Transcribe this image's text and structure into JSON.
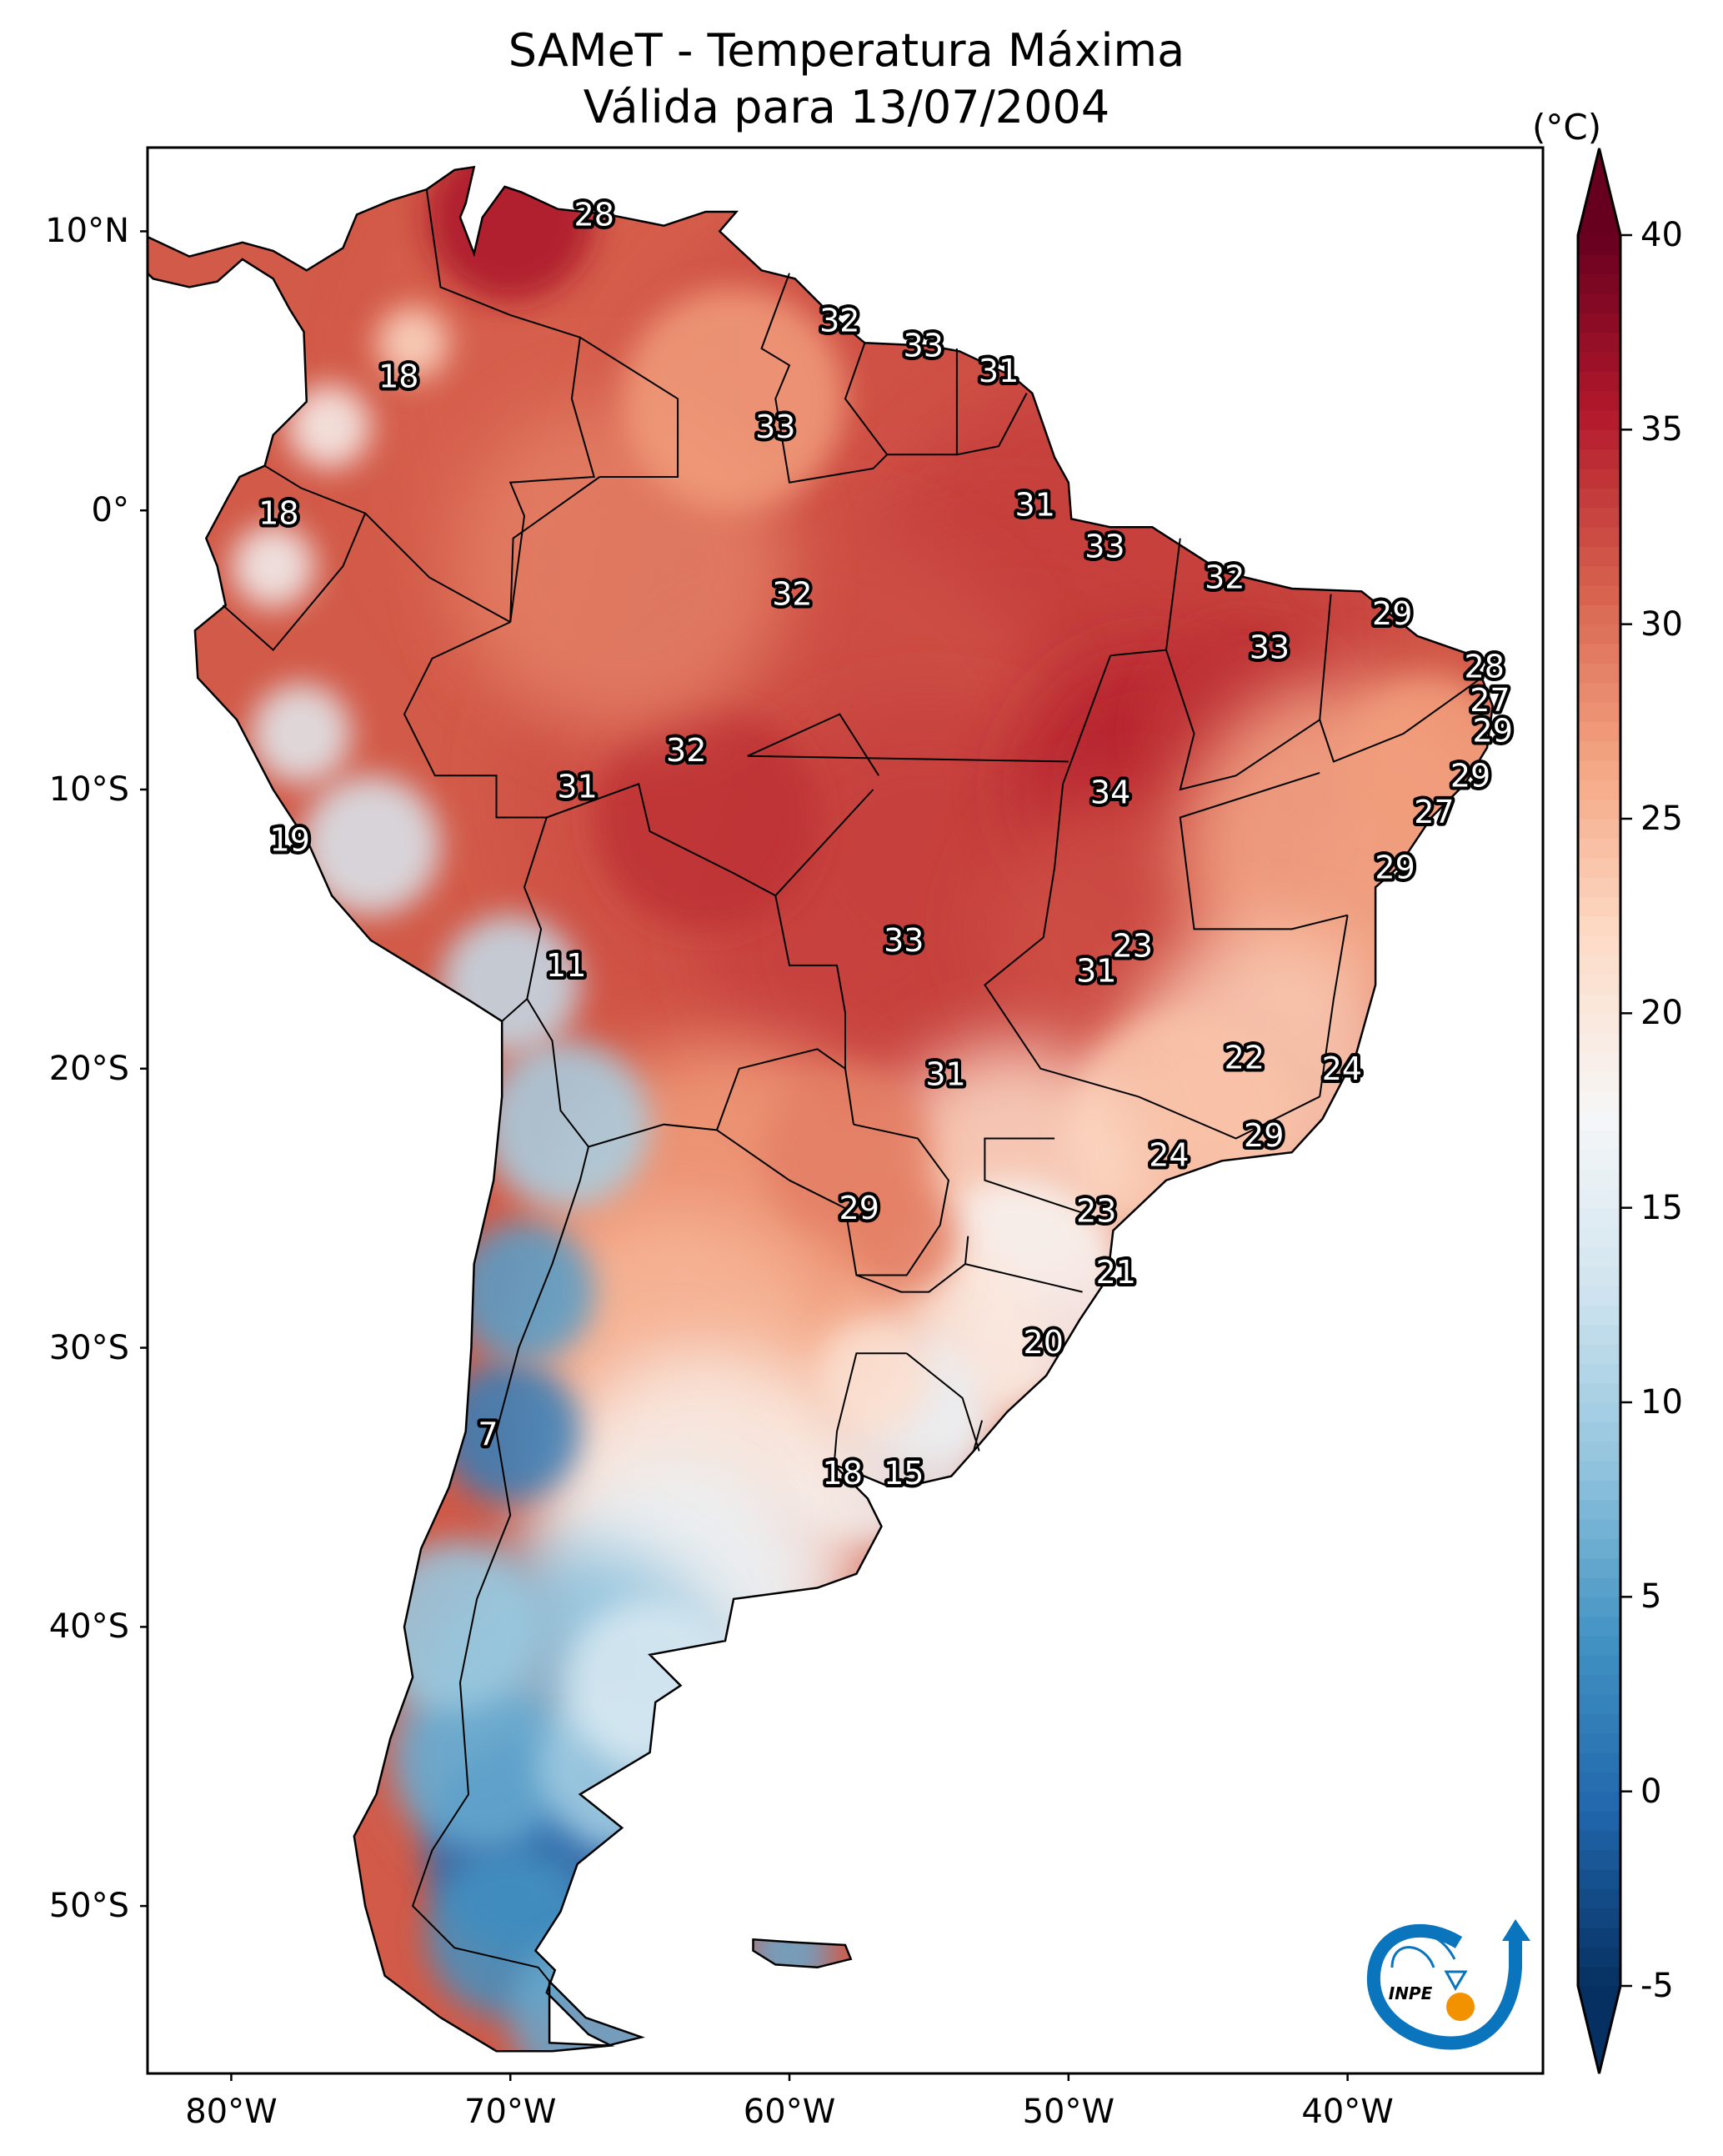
{
  "title": {
    "line1": "SAMeT - Temperatura Máxima",
    "line2": "Válida para 13/07/2004"
  },
  "chart_data": {
    "type": "heatmap",
    "title": "SAMeT - Temperatura Máxima\nVálida para 13/07/2004",
    "variable": "Maximum temperature",
    "date": "13/07/2004",
    "xlabel": "",
    "ylabel": "",
    "lon_range": [
      -83,
      -33
    ],
    "lat_range": [
      -56,
      13
    ],
    "x_ticks": [
      -80,
      -70,
      -60,
      -50,
      -40
    ],
    "x_tick_labels": [
      "80°W",
      "70°W",
      "60°W",
      "50°W",
      "40°W"
    ],
    "y_ticks": [
      10,
      0,
      -10,
      -20,
      -30,
      -40,
      -50
    ],
    "y_tick_labels": [
      "10°N",
      "0°",
      "10°S",
      "20°S",
      "30°S",
      "40°S",
      "50°S"
    ],
    "colorbar": {
      "label": "(°C)",
      "colormap": "RdBu_r",
      "min": -5,
      "max": 40,
      "ticks": [
        -5,
        0,
        5,
        10,
        15,
        20,
        25,
        30,
        35,
        40
      ],
      "extend": "both",
      "colors": [
        "#053061",
        "#2166ac",
        "#4393c3",
        "#92c5de",
        "#d1e5f0",
        "#f7f7f7",
        "#fddbc7",
        "#f4a582",
        "#d6604d",
        "#b2182b",
        "#67001f"
      ]
    },
    "station_labels": [
      {
        "value": 28,
        "lon": -67.0,
        "lat": 10.6
      },
      {
        "value": 32,
        "lon": -58.2,
        "lat": 6.8
      },
      {
        "value": 33,
        "lon": -55.2,
        "lat": 5.9
      },
      {
        "value": 31,
        "lon": -52.5,
        "lat": 5.0
      },
      {
        "value": 18,
        "lon": -74.0,
        "lat": 4.8
      },
      {
        "value": 33,
        "lon": -60.5,
        "lat": 3.0
      },
      {
        "value": 31,
        "lon": -51.2,
        "lat": 0.2
      },
      {
        "value": 18,
        "lon": -78.3,
        "lat": -0.1
      },
      {
        "value": 33,
        "lon": -48.7,
        "lat": -1.3
      },
      {
        "value": 32,
        "lon": -44.4,
        "lat": -2.4
      },
      {
        "value": 32,
        "lon": -59.9,
        "lat": -3.0
      },
      {
        "value": 29,
        "lon": -38.4,
        "lat": -3.7
      },
      {
        "value": 33,
        "lon": -42.8,
        "lat": -4.9
      },
      {
        "value": 28,
        "lon": -35.1,
        "lat": -5.6
      },
      {
        "value": 27,
        "lon": -34.9,
        "lat": -6.8
      },
      {
        "value": 29,
        "lon": -34.8,
        "lat": -7.9
      },
      {
        "value": 32,
        "lon": -63.7,
        "lat": -8.6
      },
      {
        "value": 31,
        "lon": -67.6,
        "lat": -9.9
      },
      {
        "value": 34,
        "lon": -48.5,
        "lat": -10.1
      },
      {
        "value": 29,
        "lon": -35.6,
        "lat": -9.5
      },
      {
        "value": 27,
        "lon": -36.9,
        "lat": -10.8
      },
      {
        "value": 19,
        "lon": -77.9,
        "lat": -11.8
      },
      {
        "value": 29,
        "lon": -38.3,
        "lat": -12.8
      },
      {
        "value": 23,
        "lon": -47.7,
        "lat": -15.6
      },
      {
        "value": 33,
        "lon": -55.9,
        "lat": -15.4
      },
      {
        "value": 31,
        "lon": -49.0,
        "lat": -16.5
      },
      {
        "value": 11,
        "lon": -68.0,
        "lat": -16.3
      },
      {
        "value": 22,
        "lon": -43.7,
        "lat": -19.6
      },
      {
        "value": 24,
        "lon": -40.2,
        "lat": -20.0
      },
      {
        "value": 31,
        "lon": -54.4,
        "lat": -20.2
      },
      {
        "value": 29,
        "lon": -43.0,
        "lat": -22.4
      },
      {
        "value": 24,
        "lon": -46.4,
        "lat": -23.1
      },
      {
        "value": 29,
        "lon": -57.5,
        "lat": -25.0
      },
      {
        "value": 23,
        "lon": -49.0,
        "lat": -25.1
      },
      {
        "value": 21,
        "lon": -48.3,
        "lat": -27.3
      },
      {
        "value": 20,
        "lon": -50.9,
        "lat": -29.8
      },
      {
        "value": 7,
        "lon": -70.8,
        "lat": -33.1
      },
      {
        "value": 18,
        "lon": -58.1,
        "lat": -34.5
      },
      {
        "value": 15,
        "lon": -55.9,
        "lat": -34.5
      }
    ],
    "grid": false,
    "legend": "colorbar-right"
  },
  "logo": {
    "text": "INPE",
    "colors": {
      "primary": "#0a75bc",
      "accent": "#f39200"
    }
  }
}
